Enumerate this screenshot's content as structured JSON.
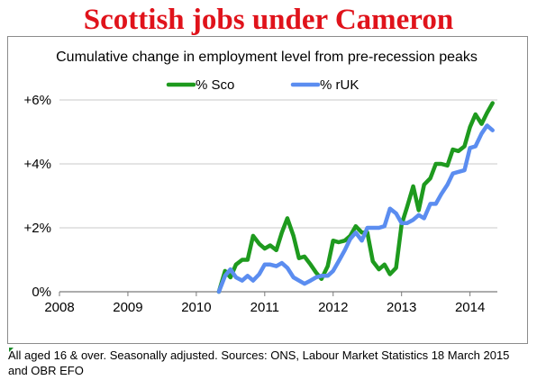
{
  "headline": "Scottish jobs under Cameron",
  "footnote": "All aged 16 & over. Seasonally adjusted. Sources: ONS, Labour Market Statistics 18 March 2015 and OBR EFO",
  "chart_data": {
    "type": "line",
    "title": "Cumulative change in employment level from pre-recession peaks",
    "xlabel": "",
    "ylabel": "",
    "xlim": [
      2008,
      2014.4
    ],
    "ylim": [
      0,
      6
    ],
    "x_ticks": [
      "2008",
      "2009",
      "2010",
      "2011",
      "2012",
      "2013",
      "2014"
    ],
    "y_ticks": [
      "0%",
      "+2%",
      "+4%",
      "+6%"
    ],
    "grid": "horizontal",
    "legend_position": "top",
    "series": [
      {
        "name": "% Sco",
        "color": "#1e9a1e",
        "points": [
          [
            2010.33,
            0.0
          ],
          [
            2010.42,
            0.65
          ],
          [
            2010.5,
            0.45
          ],
          [
            2010.58,
            0.85
          ],
          [
            2010.67,
            1.0
          ],
          [
            2010.75,
            1.0
          ],
          [
            2010.83,
            1.75
          ],
          [
            2010.92,
            1.5
          ],
          [
            2011.0,
            1.35
          ],
          [
            2011.08,
            1.45
          ],
          [
            2011.17,
            1.3
          ],
          [
            2011.25,
            1.85
          ],
          [
            2011.33,
            2.3
          ],
          [
            2011.42,
            1.75
          ],
          [
            2011.5,
            1.05
          ],
          [
            2011.58,
            1.1
          ],
          [
            2011.67,
            0.85
          ],
          [
            2011.75,
            0.6
          ],
          [
            2011.83,
            0.4
          ],
          [
            2011.92,
            0.8
          ],
          [
            2012.0,
            1.6
          ],
          [
            2012.08,
            1.55
          ],
          [
            2012.17,
            1.6
          ],
          [
            2012.25,
            1.75
          ],
          [
            2012.33,
            2.05
          ],
          [
            2012.42,
            1.85
          ],
          [
            2012.5,
            1.85
          ],
          [
            2012.58,
            0.95
          ],
          [
            2012.67,
            0.7
          ],
          [
            2012.75,
            0.85
          ],
          [
            2012.83,
            0.55
          ],
          [
            2012.92,
            0.75
          ],
          [
            2013.0,
            2.1
          ],
          [
            2013.08,
            2.65
          ],
          [
            2013.17,
            3.3
          ],
          [
            2013.25,
            2.55
          ],
          [
            2013.33,
            3.35
          ],
          [
            2013.42,
            3.55
          ],
          [
            2013.5,
            4.0
          ],
          [
            2013.58,
            4.0
          ],
          [
            2013.67,
            3.95
          ],
          [
            2013.75,
            4.45
          ],
          [
            2013.83,
            4.4
          ],
          [
            2013.92,
            4.55
          ],
          [
            2014.0,
            5.15
          ],
          [
            2014.08,
            5.55
          ],
          [
            2014.17,
            5.25
          ],
          [
            2014.25,
            5.6
          ],
          [
            2014.33,
            5.9
          ]
        ]
      },
      {
        "name": "% rUK",
        "color": "#5b8df0",
        "points": [
          [
            2010.33,
            0.0
          ],
          [
            2010.42,
            0.5
          ],
          [
            2010.5,
            0.7
          ],
          [
            2010.58,
            0.45
          ],
          [
            2010.67,
            0.35
          ],
          [
            2010.75,
            0.5
          ],
          [
            2010.83,
            0.35
          ],
          [
            2010.92,
            0.55
          ],
          [
            2011.0,
            0.85
          ],
          [
            2011.08,
            0.85
          ],
          [
            2011.17,
            0.8
          ],
          [
            2011.25,
            0.9
          ],
          [
            2011.33,
            0.75
          ],
          [
            2011.42,
            0.45
          ],
          [
            2011.5,
            0.35
          ],
          [
            2011.58,
            0.25
          ],
          [
            2011.67,
            0.35
          ],
          [
            2011.75,
            0.45
          ],
          [
            2011.83,
            0.5
          ],
          [
            2011.92,
            0.5
          ],
          [
            2012.0,
            0.65
          ],
          [
            2012.08,
            0.95
          ],
          [
            2012.17,
            1.3
          ],
          [
            2012.25,
            1.65
          ],
          [
            2012.33,
            1.85
          ],
          [
            2012.42,
            1.6
          ],
          [
            2012.5,
            2.0
          ],
          [
            2012.58,
            2.0
          ],
          [
            2012.67,
            2.0
          ],
          [
            2012.75,
            2.05
          ],
          [
            2012.83,
            2.6
          ],
          [
            2012.92,
            2.45
          ],
          [
            2013.0,
            2.15
          ],
          [
            2013.08,
            2.15
          ],
          [
            2013.17,
            2.25
          ],
          [
            2013.25,
            2.4
          ],
          [
            2013.33,
            2.3
          ],
          [
            2013.42,
            2.75
          ],
          [
            2013.5,
            2.75
          ],
          [
            2013.58,
            3.05
          ],
          [
            2013.67,
            3.35
          ],
          [
            2013.75,
            3.7
          ],
          [
            2013.83,
            3.75
          ],
          [
            2013.92,
            3.8
          ],
          [
            2014.0,
            4.5
          ],
          [
            2014.08,
            4.55
          ],
          [
            2014.17,
            4.95
          ],
          [
            2014.25,
            5.2
          ],
          [
            2014.33,
            5.05
          ]
        ]
      }
    ]
  }
}
